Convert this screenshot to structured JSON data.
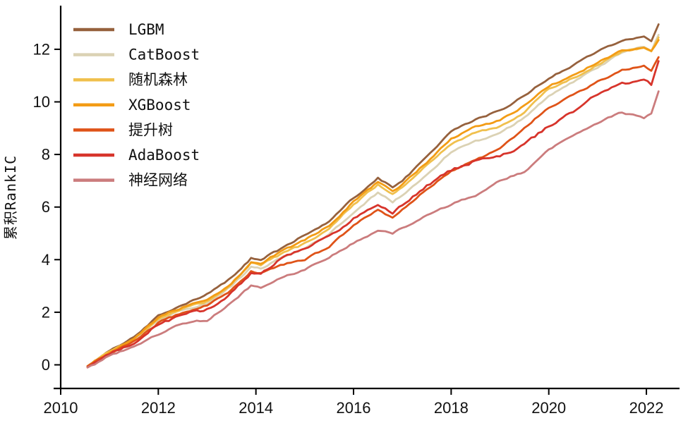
{
  "figure": {
    "background": "#ffffff",
    "axis_color": "#000000",
    "tick_color": "#000000",
    "label_color": "#111111"
  },
  "chart_data": {
    "type": "line",
    "title": "",
    "xlabel": "",
    "ylabel": "累积RankIC",
    "grid": false,
    "legend_position": "upper-left",
    "xlim": [
      2009.85,
      2022.65
    ],
    "ylim": [
      -0.9,
      13.6
    ],
    "x_ticks": [
      2010,
      2012,
      2014,
      2016,
      2018,
      2020,
      2022
    ],
    "y_ticks": [
      0,
      2,
      4,
      6,
      8,
      10,
      12
    ],
    "x": [
      2010.55,
      2011.0,
      2011.5,
      2012.0,
      2012.5,
      2013.0,
      2013.5,
      2013.9,
      2014.1,
      2014.5,
      2015.0,
      2015.5,
      2016.0,
      2016.5,
      2016.8,
      2017.0,
      2017.5,
      2018.0,
      2018.5,
      2019.0,
      2019.5,
      2020.0,
      2020.5,
      2021.0,
      2021.5,
      2021.95,
      2022.1,
      2022.25
    ],
    "series": [
      {
        "name": "LGBM",
        "color": "#96613D",
        "values": [
          -0.05,
          0.55,
          1.05,
          1.85,
          2.25,
          2.7,
          3.3,
          4.05,
          4.0,
          4.4,
          4.95,
          5.45,
          6.35,
          7.1,
          6.75,
          7.0,
          7.9,
          8.85,
          9.35,
          9.65,
          10.25,
          10.9,
          11.4,
          11.9,
          12.35,
          12.45,
          12.3,
          12.95
        ]
      },
      {
        "name": "CatBoost",
        "color": "#DBD2B4",
        "values": [
          -0.05,
          0.5,
          0.95,
          1.7,
          2.1,
          2.3,
          3.0,
          3.7,
          3.65,
          4.05,
          4.45,
          4.95,
          5.8,
          6.55,
          6.2,
          6.45,
          7.25,
          8.1,
          8.5,
          8.8,
          9.4,
          10.25,
          10.75,
          11.3,
          11.9,
          12.1,
          11.95,
          12.55
        ]
      },
      {
        "name": "随机森林",
        "color": "#F0C04D",
        "values": [
          -0.05,
          0.5,
          1.0,
          1.75,
          2.15,
          2.4,
          3.05,
          3.85,
          3.8,
          4.2,
          4.6,
          5.15,
          6.1,
          6.85,
          6.5,
          6.75,
          7.6,
          8.4,
          8.85,
          9.05,
          9.6,
          10.5,
          10.9,
          11.4,
          11.9,
          12.05,
          11.9,
          12.45
        ]
      },
      {
        "name": "XGBoost",
        "color": "#F39C15",
        "values": [
          -0.05,
          0.5,
          1.0,
          1.8,
          2.2,
          2.45,
          3.1,
          3.9,
          3.85,
          4.3,
          4.75,
          5.3,
          6.2,
          6.95,
          6.6,
          6.85,
          7.7,
          8.6,
          9.05,
          9.3,
          9.85,
          10.6,
          11.0,
          11.5,
          11.95,
          12.05,
          11.9,
          12.35
        ]
      },
      {
        "name": "提升树",
        "color": "#DF5318",
        "values": [
          -0.05,
          0.45,
          0.9,
          1.6,
          2.0,
          2.25,
          2.85,
          3.55,
          3.5,
          3.8,
          4.0,
          4.5,
          5.3,
          5.9,
          5.6,
          5.9,
          6.7,
          7.35,
          7.8,
          8.2,
          9.0,
          9.8,
          10.25,
          10.75,
          11.2,
          11.35,
          11.2,
          11.7
        ]
      },
      {
        "name": "AdaBoost",
        "color": "#D7342B",
        "values": [
          -0.1,
          0.4,
          0.85,
          1.55,
          1.9,
          2.1,
          2.75,
          3.5,
          3.45,
          4.05,
          4.4,
          4.9,
          5.55,
          6.15,
          5.8,
          6.05,
          6.8,
          7.4,
          7.75,
          7.9,
          8.35,
          9.1,
          9.6,
          10.3,
          10.7,
          10.8,
          10.65,
          11.55
        ]
      },
      {
        "name": "神经网络",
        "color": "#CB7C7D",
        "values": [
          -0.1,
          0.35,
          0.7,
          1.15,
          1.6,
          1.7,
          2.35,
          3.0,
          2.95,
          3.3,
          3.6,
          4.1,
          4.65,
          5.1,
          5.0,
          5.2,
          5.7,
          6.1,
          6.45,
          7.0,
          7.35,
          8.2,
          8.7,
          9.2,
          9.6,
          9.4,
          9.55,
          10.4
        ]
      }
    ]
  }
}
